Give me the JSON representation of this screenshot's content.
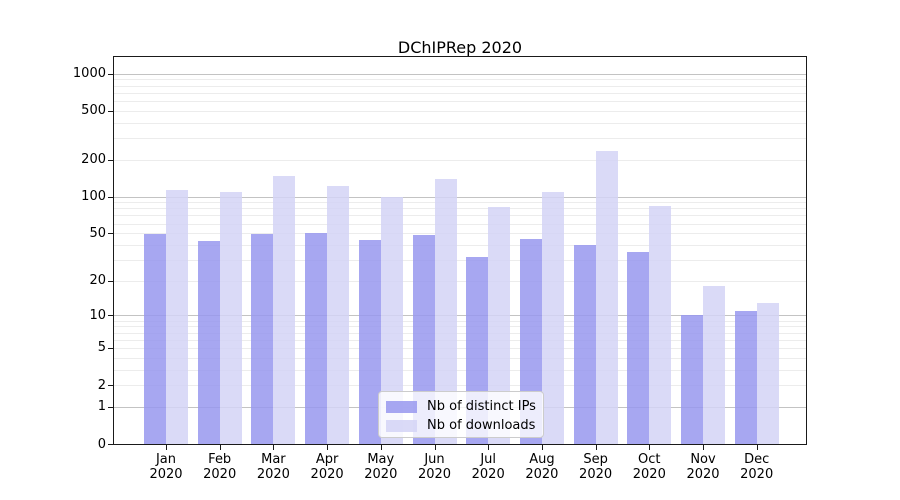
{
  "chart_data": {
    "type": "bar",
    "title": "DChIPRep 2020",
    "categories": [
      "Jan",
      "Feb",
      "Mar",
      "Apr",
      "May",
      "Jun",
      "Jul",
      "Aug",
      "Sep",
      "Oct",
      "Nov",
      "Dec"
    ],
    "category_year": "2020",
    "series": [
      {
        "name": "Nb of distinct IPs",
        "color": "rgba(152,152,238,0.85)",
        "values": [
          49,
          43,
          49,
          50,
          44,
          48,
          32,
          45,
          40,
          35,
          10,
          11
        ]
      },
      {
        "name": "Nb of downloads",
        "color": "rgba(211,211,246,0.85)",
        "values": [
          114,
          109,
          148,
          122,
          100,
          138,
          82,
          108,
          237,
          83,
          18,
          13
        ]
      }
    ],
    "yscale": "log1p",
    "ylim": [
      0,
      1360
    ],
    "yticks": [
      0,
      1,
      2,
      5,
      10,
      20,
      50,
      100,
      200,
      500,
      1000
    ],
    "grid": {
      "major_values": [
        1,
        10,
        100,
        1000
      ],
      "major_color": "#c3c3c3",
      "minor_values": [
        2,
        3,
        4,
        5,
        6,
        7,
        8,
        9,
        20,
        30,
        40,
        50,
        60,
        70,
        80,
        90,
        200,
        300,
        400,
        500,
        600,
        700,
        800,
        900
      ],
      "minor_color": "#ececec"
    },
    "legend": {
      "position": "lower-center",
      "border_color": "#cccccc"
    }
  }
}
